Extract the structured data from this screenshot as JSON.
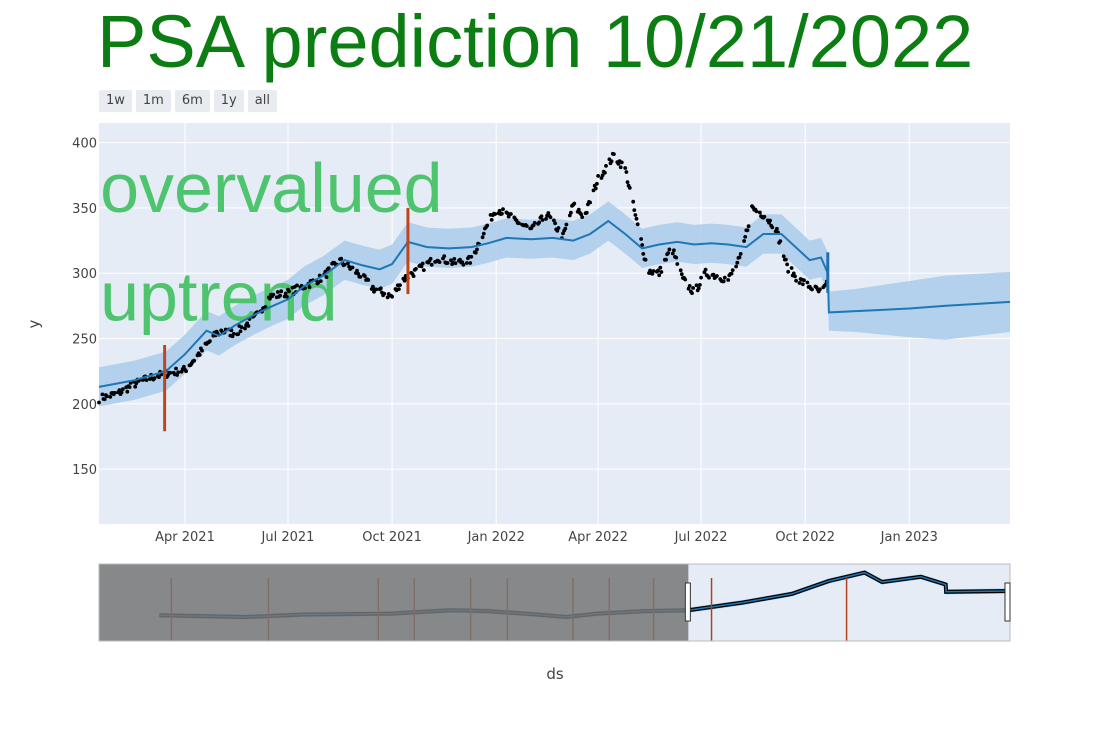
{
  "title": "PSA prediction 10/21/2022",
  "range_buttons": [
    "1w",
    "1m",
    "6m",
    "1y",
    "all"
  ],
  "chart_data": {
    "type": "line",
    "xlabel": "ds",
    "ylabel": "y",
    "xlim": [
      "2021-01-15",
      "2023-03-31"
    ],
    "ylim": [
      108,
      415
    ],
    "y_ticks": [
      150,
      200,
      250,
      300,
      350,
      400
    ],
    "x_ticks": [
      {
        "date": "2021-04-01",
        "label": "Apr 2021"
      },
      {
        "date": "2021-07-01",
        "label": "Jul 2021"
      },
      {
        "date": "2021-10-01",
        "label": "Oct 2021"
      },
      {
        "date": "2022-01-01",
        "label": "Jan 2022"
      },
      {
        "date": "2022-04-01",
        "label": "Apr 2022"
      },
      {
        "date": "2022-07-01",
        "label": "Jul 2022"
      },
      {
        "date": "2022-10-01",
        "label": "Oct 2022"
      },
      {
        "date": "2023-01-01",
        "label": "Jan 2023"
      }
    ],
    "grid": true,
    "annotations": [
      {
        "text": "overvalued",
        "date": "2021-01-16",
        "y": 366
      },
      {
        "text": "uptrend",
        "date": "2021-01-16",
        "y": 283
      }
    ],
    "changepoints": [
      {
        "date": "2021-03-14",
        "y_low": 179,
        "y_high": 245
      },
      {
        "date": "2021-10-15",
        "y_low": 284,
        "y_high": 350
      },
      {
        "date": "2022-10-21",
        "y_low": 285,
        "y_high": 316
      }
    ],
    "actual_key_points": [
      [
        "2021-01-15",
        204
      ],
      [
        "2021-02-01",
        208
      ],
      [
        "2021-02-15",
        215
      ],
      [
        "2021-03-01",
        220
      ],
      [
        "2021-03-15",
        223
      ],
      [
        "2021-04-01",
        226
      ],
      [
        "2021-04-15",
        240
      ],
      [
        "2021-05-01",
        256
      ],
      [
        "2021-05-15",
        254
      ],
      [
        "2021-06-01",
        265
      ],
      [
        "2021-06-15",
        282
      ],
      [
        "2021-07-01",
        285
      ],
      [
        "2021-07-15",
        290
      ],
      [
        "2021-08-01",
        297
      ],
      [
        "2021-08-15",
        310
      ],
      [
        "2021-09-01",
        300
      ],
      [
        "2021-09-15",
        288
      ],
      [
        "2021-10-01",
        282
      ],
      [
        "2021-10-10",
        295
      ],
      [
        "2021-10-25",
        303
      ],
      [
        "2021-11-10",
        312
      ],
      [
        "2021-11-25",
        308
      ],
      [
        "2021-12-10",
        310
      ],
      [
        "2021-12-20",
        330
      ],
      [
        "2022-01-01",
        350
      ],
      [
        "2022-01-15",
        342
      ],
      [
        "2022-02-01",
        333
      ],
      [
        "2022-02-15",
        345
      ],
      [
        "2022-03-01",
        328
      ],
      [
        "2022-03-10",
        352
      ],
      [
        "2022-03-20",
        343
      ],
      [
        "2022-04-01",
        372
      ],
      [
        "2022-04-15",
        390
      ],
      [
        "2022-04-25",
        380
      ],
      [
        "2022-05-05",
        340
      ],
      [
        "2022-05-15",
        302
      ],
      [
        "2022-05-25",
        300
      ],
      [
        "2022-06-05",
        320
      ],
      [
        "2022-06-15",
        295
      ],
      [
        "2022-06-25",
        285
      ],
      [
        "2022-07-05",
        300
      ],
      [
        "2022-07-15",
        298
      ],
      [
        "2022-07-25",
        295
      ],
      [
        "2022-08-05",
        312
      ],
      [
        "2022-08-15",
        350
      ],
      [
        "2022-08-25",
        345
      ],
      [
        "2022-09-05",
        335
      ],
      [
        "2022-09-15",
        305
      ],
      [
        "2022-09-25",
        295
      ],
      [
        "2022-10-05",
        290
      ],
      [
        "2022-10-15",
        285
      ],
      [
        "2022-10-21",
        292
      ]
    ],
    "forecast": {
      "name": "yhat",
      "color": "#1f77b4",
      "band_color": "#aacbea",
      "points": [
        [
          "2021-01-15",
          213,
          198,
          228
        ],
        [
          "2021-02-15",
          218,
          203,
          233
        ],
        [
          "2021-03-15",
          225,
          210,
          240
        ],
        [
          "2021-04-01",
          238,
          223,
          253
        ],
        [
          "2021-04-20",
          256,
          241,
          271
        ],
        [
          "2021-05-01",
          252,
          237,
          267
        ],
        [
          "2021-05-15",
          260,
          245,
          275
        ],
        [
          "2021-06-01",
          268,
          253,
          283
        ],
        [
          "2021-06-15",
          274,
          259,
          289
        ],
        [
          "2021-07-01",
          280,
          265,
          295
        ],
        [
          "2021-07-15",
          290,
          275,
          305
        ],
        [
          "2021-08-01",
          298,
          283,
          313
        ],
        [
          "2021-08-20",
          310,
          295,
          325
        ],
        [
          "2021-09-05",
          306,
          291,
          321
        ],
        [
          "2021-09-20",
          303,
          288,
          318
        ],
        [
          "2021-10-01",
          307,
          292,
          322
        ],
        [
          "2021-10-15",
          324,
          309,
          339
        ],
        [
          "2021-11-01",
          320,
          305,
          335
        ],
        [
          "2021-11-20",
          319,
          304,
          334
        ],
        [
          "2021-12-10",
          320,
          305,
          335
        ],
        [
          "2021-12-25",
          323,
          308,
          338
        ],
        [
          "2022-01-10",
          327,
          312,
          342
        ],
        [
          "2022-02-01",
          326,
          311,
          341
        ],
        [
          "2022-02-20",
          327,
          312,
          342
        ],
        [
          "2022-03-10",
          325,
          310,
          340
        ],
        [
          "2022-03-25",
          330,
          315,
          345
        ],
        [
          "2022-04-10",
          340,
          325,
          355
        ],
        [
          "2022-04-25",
          330,
          315,
          345
        ],
        [
          "2022-05-10",
          319,
          304,
          334
        ],
        [
          "2022-05-25",
          322,
          307,
          337
        ],
        [
          "2022-06-10",
          324,
          309,
          339
        ],
        [
          "2022-06-25",
          322,
          307,
          337
        ],
        [
          "2022-07-10",
          323,
          308,
          338
        ],
        [
          "2022-07-25",
          322,
          307,
          337
        ],
        [
          "2022-08-10",
          320,
          305,
          335
        ],
        [
          "2022-08-25",
          330,
          315,
          345
        ],
        [
          "2022-09-10",
          330,
          315,
          345
        ],
        [
          "2022-09-25",
          318,
          303,
          333
        ],
        [
          "2022-10-05",
          310,
          295,
          325
        ],
        [
          "2022-10-15",
          312,
          297,
          327
        ],
        [
          "2022-10-21",
          300,
          285,
          316
        ],
        [
          "2022-10-22",
          270,
          256,
          286
        ],
        [
          "2022-11-15",
          271,
          255,
          288
        ],
        [
          "2023-01-01",
          273,
          251,
          294
        ],
        [
          "2023-02-01",
          275,
          249,
          298
        ],
        [
          "2023-03-31",
          278,
          255,
          301
        ]
      ]
    },
    "rangeslider": {
      "xlim": [
        "2017-01-01",
        "2023-03-31"
      ],
      "selected": [
        "2021-01-15",
        "2023-03-31"
      ],
      "changepoint_dates": [
        "2017-07-01",
        "2018-03-01",
        "2018-12-01",
        "2019-03-01",
        "2019-07-20",
        "2019-10-20",
        "2020-04-01",
        "2020-07-01",
        "2020-10-20",
        "2021-03-14",
        "2022-02-15"
      ],
      "history_y": [
        [
          "2017-06-01",
          210
        ],
        [
          "2018-01-01",
          206
        ],
        [
          "2018-06-01",
          212
        ],
        [
          "2019-01-01",
          214
        ],
        [
          "2019-06-01",
          222
        ],
        [
          "2019-09-01",
          220
        ],
        [
          "2020-01-01",
          212
        ],
        [
          "2020-03-15",
          206
        ],
        [
          "2020-06-01",
          214
        ],
        [
          "2020-10-01",
          220
        ],
        [
          "2021-01-15",
          222
        ],
        [
          "2021-06-01",
          240
        ],
        [
          "2021-10-01",
          260
        ],
        [
          "2022-01-01",
          290
        ],
        [
          "2022-04-01",
          310
        ],
        [
          "2022-05-15",
          288
        ],
        [
          "2022-08-20",
          300
        ],
        [
          "2022-10-21",
          282
        ],
        [
          "2022-10-22",
          265
        ],
        [
          "2023-03-31",
          267
        ]
      ]
    }
  }
}
